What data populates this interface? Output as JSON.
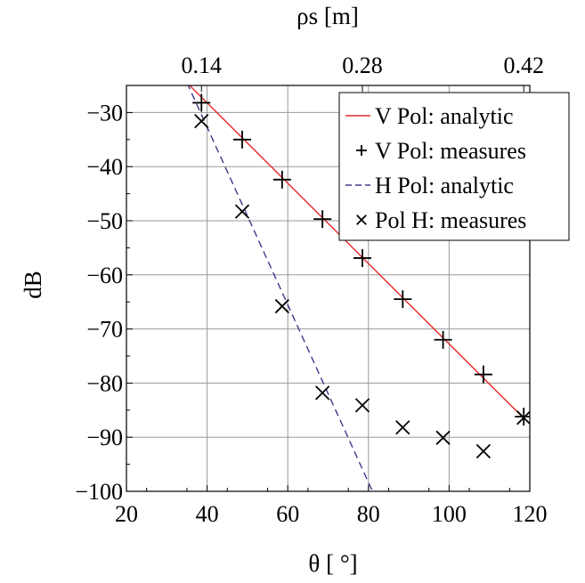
{
  "chart_data": {
    "type": "line",
    "xlabel": "θ [ °]",
    "ylabel": "dB",
    "top_axis_label": "ρs [m]",
    "xlim": [
      20,
      120
    ],
    "ylim": [
      -100,
      -25
    ],
    "x_ticks": [
      "20",
      "40",
      "60",
      "80",
      "100",
      "120"
    ],
    "y_ticks": [
      "−30",
      "−40",
      "−50",
      "−60",
      "−70",
      "−80",
      "−90",
      "−100"
    ],
    "top_ticks": [
      {
        "theta": 38.6,
        "label": "0.14"
      },
      {
        "theta": 78.5,
        "label": "0.28"
      },
      {
        "theta": 118.5,
        "label": "0.42"
      }
    ],
    "grid": true,
    "legend_position": "top-right",
    "series": [
      {
        "name": "V Pol: analytic",
        "kind": "line",
        "style": "solid",
        "color": "#e8282b",
        "x": [
          35,
          118.5
        ],
        "y": [
          -24.5,
          -86.5
        ]
      },
      {
        "name": "V Pol: measures",
        "kind": "marker",
        "marker": "+",
        "color": "#000000",
        "x": [
          38.6,
          48.7,
          58.6,
          68.6,
          78.5,
          88.5,
          98.5,
          108.5,
          118.5
        ],
        "y": [
          -28.2,
          -35.0,
          -42.4,
          -49.7,
          -56.9,
          -64.5,
          -72.0,
          -78.4,
          -86.2
        ]
      },
      {
        "name": "H Pol: analytic",
        "kind": "line",
        "style": "dashed",
        "color": "#3a3a8c",
        "x": [
          35,
          81
        ],
        "y": [
          -24.5,
          -100
        ]
      },
      {
        "name": "Pol H: measures",
        "kind": "marker",
        "marker": "x",
        "color": "#000000",
        "x": [
          38.6,
          48.7,
          58.6,
          68.6,
          78.5,
          88.5,
          98.5,
          108.5,
          118.5
        ],
        "y": [
          -31.6,
          -48.3,
          -65.8,
          -81.8,
          -84.1,
          -88.2,
          -90.1,
          -92.6,
          -86.4
        ]
      }
    ]
  }
}
